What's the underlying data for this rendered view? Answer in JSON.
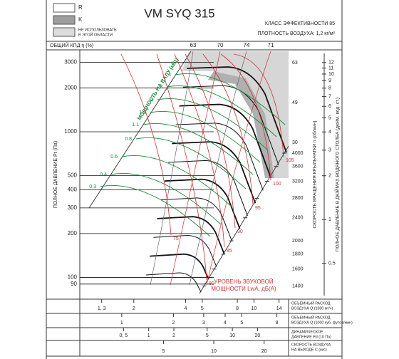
{
  "chart_data": {
    "type": "fan-curve",
    "title": "VM SYQ 315",
    "efficiency_class": "КЛАСС ЭФФЕКТИВНОСТИ 85",
    "air_density": "ПЛОТНОСТЬ ВОЗДУХА: 1,2 кг/м³",
    "legend": [
      {
        "label": "R",
        "color": "#ffffff"
      },
      {
        "label": "K",
        "color": "#9e9e9e"
      },
      {
        "label": [
          "НЕ ИСПОЛЬЗОВАТЬ",
          "В ЭТОЙ ОБЛАСТИ"
        ],
        "color": "#dcdcdc"
      }
    ],
    "efficiency_label": "ОБЩИЙ КПД η (%)",
    "efficiency_values": [
      63,
      70,
      74,
      71
    ],
    "ylabel": "ПОЛНОЕ ДАВЛЕНИЕ Pt (Па)",
    "log_y": true,
    "ylim": [
      75,
      3450
    ],
    "yticks": [
      90,
      100,
      200,
      300,
      400,
      500,
      1000,
      2000,
      3000
    ],
    "speed_label": "СКОРОСТЬ ВРАЩЕНИЯ КРЫЛЬЧАТКИ n (об/мин)",
    "speed_lim": [
      1297,
      8800
    ],
    "speed_ticks": [
      1400,
      1600,
      1800,
      2000,
      2400,
      2800,
      3200,
      3600,
      4000
    ],
    "y2label": "ПОЛНОЕ ДАВЛЕНИЕ В ДЮЙМАХ ВОДЯНОГО СТОЛБА (дюйм. вод. ст.)",
    "y2lim": [
      0.3,
      13.86
    ],
    "y2ticks": [
      0.5,
      1,
      2,
      3,
      4,
      5,
      6,
      7,
      8,
      9,
      10,
      11,
      12
    ],
    "side_values": [
      63,
      49,
      30
    ],
    "power_label": "МОЩНОСТЬ НА ВАЛУ (кВт)",
    "power_values": [
      4,
      3,
      2,
      1.5,
      1.1,
      0.8,
      0.6,
      0.4,
      0.3
    ],
    "noise_label": [
      "УРОВЕНЬ ЗВУКОВОЙ",
      "МОЩНОСТИ LwA, дБ(А)"
    ],
    "noise_values": [
      105,
      100,
      95,
      90,
      85,
      80,
      75
    ],
    "x_axes": [
      {
        "label": [
          "ОБЪЕМНЫЙ РАСХОД",
          "ВОЗДУХА Q (1000 м³/ч)"
        ],
        "xlim": [
          0.97,
          15.9
        ],
        "xticks": [
          {
            "value": 1.3,
            "label": "1, 3"
          },
          2,
          4,
          5,
          8,
          10,
          14
        ]
      },
      {
        "label": [
          "ОБЪЕМНЫЙ РАСХОД",
          "ВОЗДУХА Q (1000 куб. футов/мин)"
        ],
        "xlim": [
          0.57,
          9.36
        ],
        "xticks": [
          1,
          2,
          3,
          4,
          5,
          8
        ]
      },
      {
        "label": [
          "ДИНАМИЧЕСКОЕ",
          "ДАВЛЕНИЕ Pd (10 Па)"
        ],
        "xlim": [
          0.15,
          47
        ],
        "xticks": [
          {
            "value": 0.5,
            "label": "0, 5"
          },
          1,
          2,
          5,
          10,
          20
        ]
      },
      {
        "label": [
          "СКОРОСТЬ ВОЗДУХА",
          "НА ВЫХОДЕ C (м/с)"
        ],
        "xlim": [
          1.58,
          28
        ],
        "xticks": [
          5,
          10,
          20
        ]
      }
    ]
  }
}
